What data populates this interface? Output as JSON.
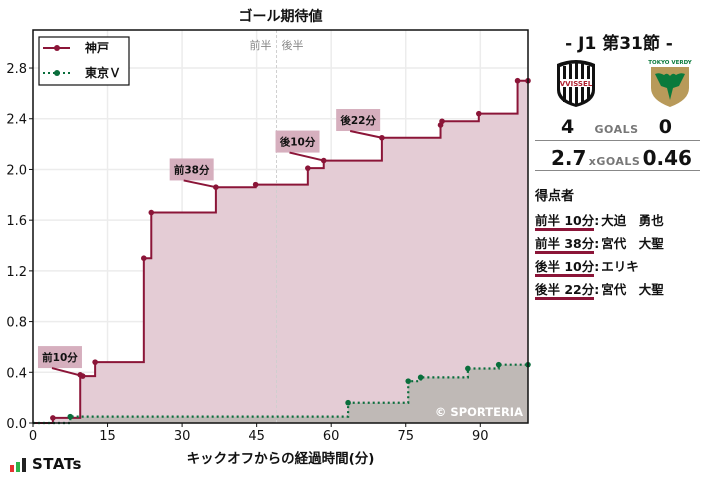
{
  "chart_data": {
    "type": "line",
    "subtype": "step-area",
    "title": "ゴール期待値",
    "xlabel": "キックオフからの経過時間(分)",
    "ylabel": "",
    "xlim": [
      0,
      99.6
    ],
    "ylim": [
      0,
      3.1
    ],
    "x_ticks": [
      0,
      15,
      30,
      45,
      60,
      75,
      90
    ],
    "y_ticks": [
      "0.0",
      "0.4",
      "0.8",
      "1.2",
      "1.6",
      "2.0",
      "2.4",
      "2.8"
    ],
    "y_tick_values": [
      0,
      0.4,
      0.8,
      1.2,
      1.6,
      2.0,
      2.4,
      2.8
    ],
    "grid": true,
    "halftime_line_x": 49,
    "halftime_labels": {
      "first": "前半",
      "second": "後半"
    },
    "legend_position": "upper left",
    "watermark": "© SPORTERIA",
    "series": [
      {
        "name": "神戸",
        "color": "#8b1538",
        "fill": "#e4ccd5",
        "linestyle": "solid",
        "points": [
          [
            0,
            0
          ],
          [
            4,
            0.04
          ],
          [
            9.5,
            0.38
          ],
          [
            10,
            0.37
          ],
          [
            12.5,
            0.48
          ],
          [
            22.3,
            1.3
          ],
          [
            23.8,
            1.66
          ],
          [
            36.8,
            1.86
          ],
          [
            44.8,
            1.88
          ],
          [
            55.3,
            2.01
          ],
          [
            58.5,
            2.07
          ],
          [
            70.2,
            2.25
          ],
          [
            82,
            2.35
          ],
          [
            82.3,
            2.38
          ],
          [
            89.7,
            2.44
          ],
          [
            97.5,
            2.7
          ],
          [
            99.6,
            2.7
          ]
        ]
      },
      {
        "name": "東京Ｖ",
        "color": "#0a6e3c",
        "fill": "#bfb9b6",
        "linestyle": "dotted",
        "points": [
          [
            0,
            0
          ],
          [
            7.5,
            0.05
          ],
          [
            63.4,
            0.16
          ],
          [
            75.5,
            0.33
          ],
          [
            78,
            0.36
          ],
          [
            87.5,
            0.43
          ],
          [
            93.7,
            0.46
          ],
          [
            99.6,
            0.46
          ]
        ]
      }
    ],
    "annotations": [
      {
        "label": "前10分",
        "x": 10,
        "y": 0.37,
        "box_x": 1,
        "box_y": 0.52
      },
      {
        "label": "前38分",
        "x": 36.8,
        "y": 1.86,
        "box_x": 27.5,
        "box_y": 2.0
      },
      {
        "label": "後10分",
        "x": 58.5,
        "y": 2.07,
        "box_x": 48.8,
        "box_y": 2.22
      },
      {
        "label": "後22分",
        "x": 70.2,
        "y": 2.25,
        "box_x": 61,
        "box_y": 2.39
      }
    ]
  },
  "match": {
    "round": "- J1 第31節 -",
    "home": {
      "name": "神戸",
      "logo": "vissel-kobe-crest",
      "goals": "4",
      "xg": "2.7"
    },
    "away": {
      "name": "東京Ｖ",
      "logo": "tokyo-verdy-crest",
      "goals": "0",
      "xg": "0.46"
    },
    "goals_label": "GOALS",
    "xg_label": "xGOALS"
  },
  "scorers": {
    "title": "得点者",
    "items": [
      {
        "time": "前半 10分",
        "name": "大迫　勇也"
      },
      {
        "time": "前半 38分",
        "name": "宮代　大聖"
      },
      {
        "time": "後半 10分",
        "name": "エリキ"
      },
      {
        "time": "後半 22分",
        "name": "宮代　大聖"
      }
    ]
  },
  "brand": {
    "text": "STATs",
    "bar_colors": [
      "#e63232",
      "#2db34a",
      "#222222"
    ]
  }
}
